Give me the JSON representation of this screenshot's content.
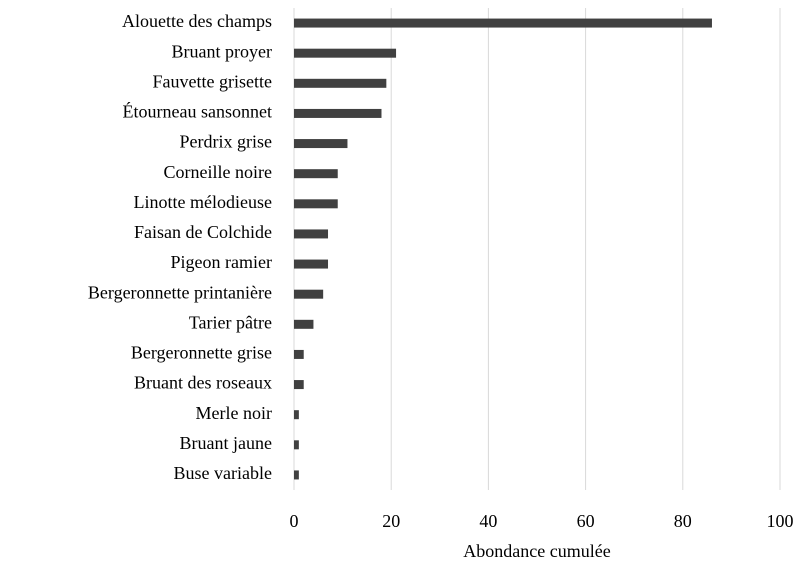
{
  "chart_data": {
    "type": "hbar",
    "categories": [
      "Alouette des champs",
      "Bruant proyer",
      "Fauvette grisette",
      "Étourneau sansonnet",
      "Perdrix grise",
      "Corneille noire",
      "Linotte mélodieuse",
      "Faisan de Colchide",
      "Pigeon ramier",
      "Bergeronnette printanière",
      "Tarier pâtre",
      "Bergeronnette grise",
      "Bruant des roseaux",
      "Merle noir",
      "Bruant jaune",
      "Buse variable"
    ],
    "values": [
      86,
      21,
      19,
      18,
      11,
      9,
      9,
      7,
      7,
      6,
      4,
      2,
      2,
      1,
      1,
      1
    ],
    "color": "#404040",
    "xlabel": "Abondance cumulée",
    "xlim": [
      0,
      100
    ],
    "xticks": [
      0,
      20,
      40,
      60,
      80,
      100
    ],
    "grid": true
  }
}
